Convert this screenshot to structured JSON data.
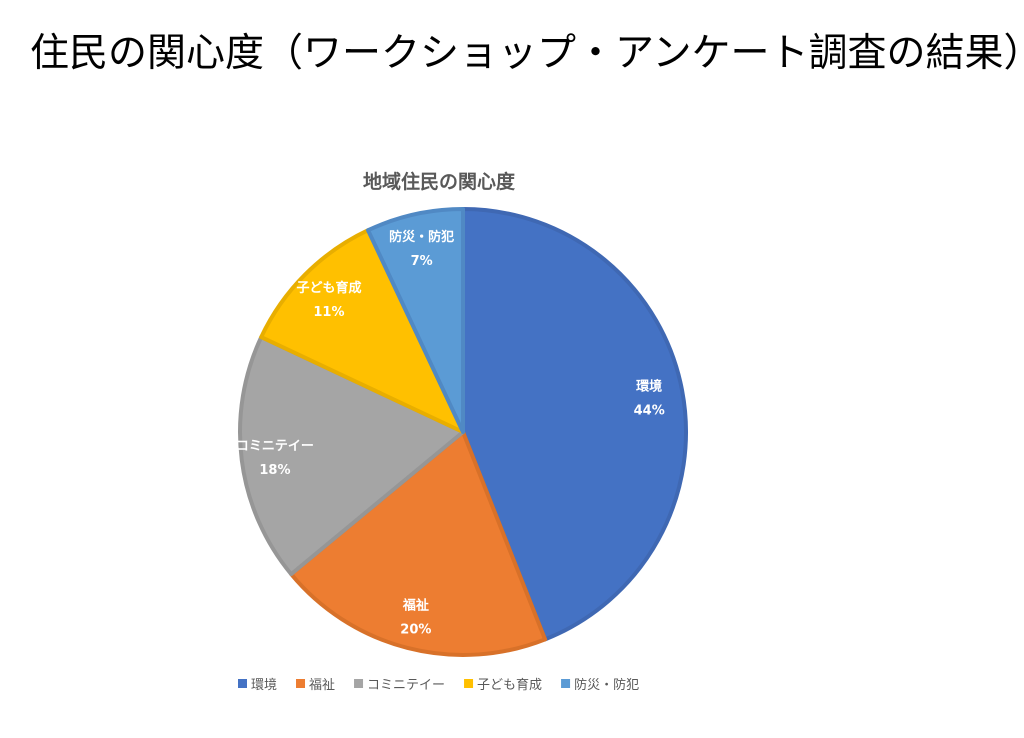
{
  "slide": {
    "title": "住民の関心度（ワークショップ・アンケート調査の結果）"
  },
  "chart_data": {
    "type": "pie",
    "title": "地域住民の関心度",
    "start": "top",
    "direction": "clockwise",
    "legend_position": "bottom",
    "categories": [
      "環境",
      "福祉",
      "コミニテイー",
      "子ども育成",
      "防災・防犯"
    ],
    "values": [
      44,
      20,
      18,
      11,
      7
    ],
    "labels": [
      "44%",
      "20%",
      "18%",
      "11%",
      "7%"
    ],
    "colors": [
      "#4472C4",
      "#ED7D31",
      "#A5A5A5",
      "#FFC000",
      "#5B9BD5"
    ],
    "border_colors": [
      "#3F68B3",
      "#D87129",
      "#969696",
      "#E8AE00",
      "#5089C4"
    ]
  }
}
